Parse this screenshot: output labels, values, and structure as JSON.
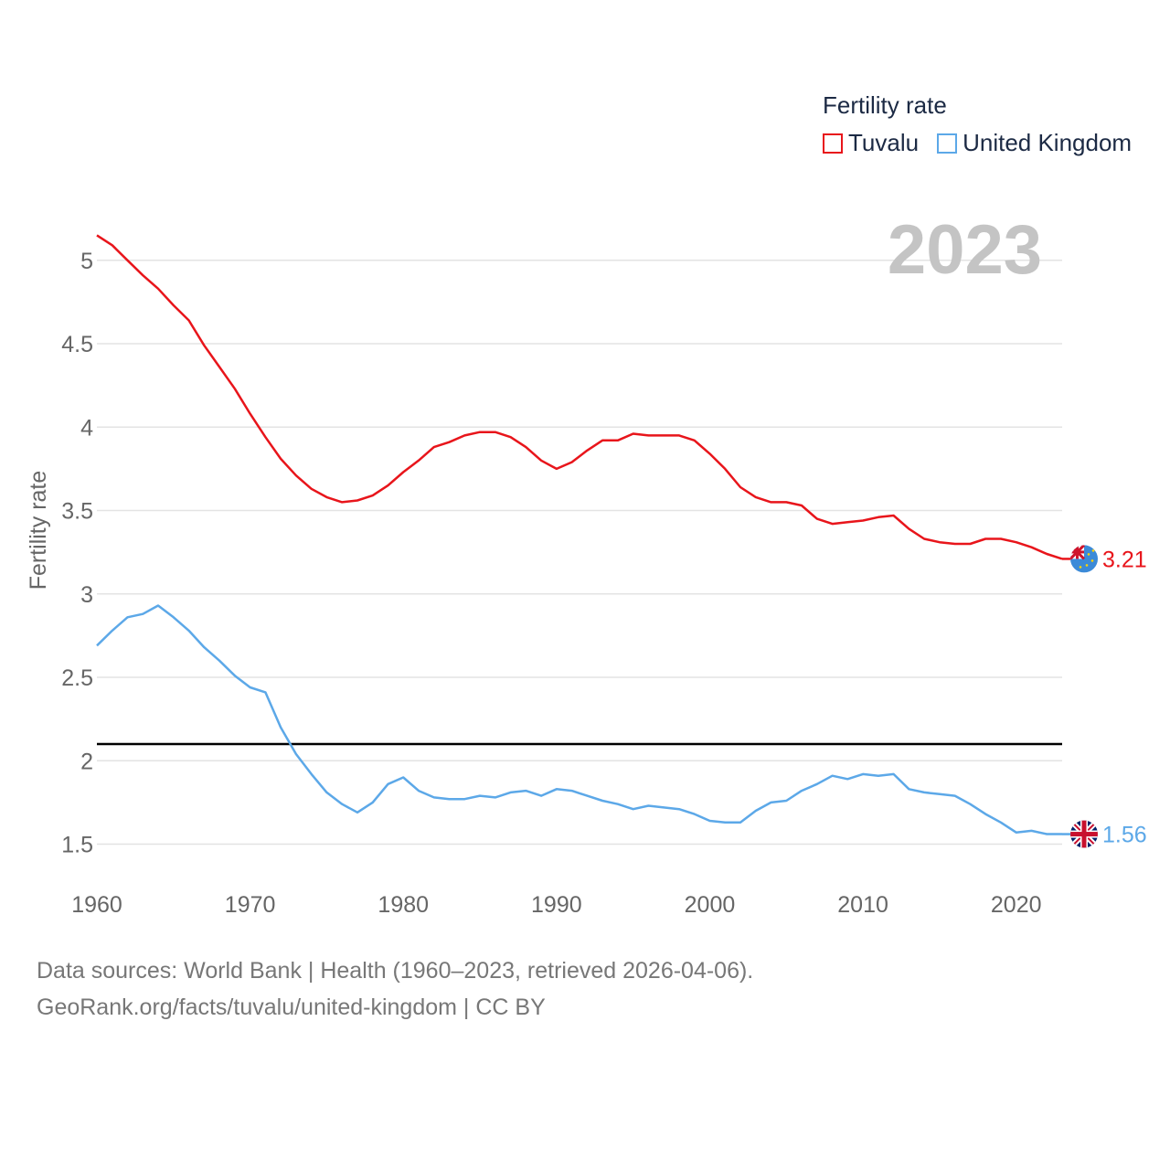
{
  "chart_data": {
    "type": "line",
    "title": "Fertility rate",
    "ylabel": "Fertility rate",
    "xlabel": "",
    "year_label": "2023",
    "xlim": [
      1960,
      2023
    ],
    "ylim": [
      1.3,
      5.3
    ],
    "x_ticks": [
      1960,
      1970,
      1980,
      1990,
      2000,
      2010,
      2020
    ],
    "y_ticks": [
      1.5,
      2,
      2.5,
      3,
      3.5,
      4,
      4.5,
      5
    ],
    "y_tick_labels": [
      "1.5",
      "2",
      "2.5",
      "3",
      "3.5",
      "4",
      "4.5",
      "5"
    ],
    "reference_line": {
      "y": 2.1,
      "color": "#000000"
    },
    "x": [
      1960,
      1961,
      1962,
      1963,
      1964,
      1965,
      1966,
      1967,
      1968,
      1969,
      1970,
      1971,
      1972,
      1973,
      1974,
      1975,
      1976,
      1977,
      1978,
      1979,
      1980,
      1981,
      1982,
      1983,
      1984,
      1985,
      1986,
      1987,
      1988,
      1989,
      1990,
      1991,
      1992,
      1993,
      1994,
      1995,
      1996,
      1997,
      1998,
      1999,
      2000,
      2001,
      2002,
      2003,
      2004,
      2005,
      2006,
      2007,
      2008,
      2009,
      2010,
      2011,
      2012,
      2013,
      2014,
      2015,
      2016,
      2017,
      2018,
      2019,
      2020,
      2021,
      2022,
      2023
    ],
    "series": [
      {
        "name": "Tuvalu",
        "color": "#e8151b",
        "end_label": "3.21",
        "values": [
          5.15,
          5.09,
          5.0,
          4.91,
          4.83,
          4.73,
          4.64,
          4.49,
          4.36,
          4.23,
          4.08,
          3.94,
          3.81,
          3.71,
          3.63,
          3.58,
          3.55,
          3.56,
          3.59,
          3.65,
          3.73,
          3.8,
          3.88,
          3.91,
          3.95,
          3.97,
          3.97,
          3.94,
          3.88,
          3.8,
          3.75,
          3.79,
          3.86,
          3.92,
          3.92,
          3.96,
          3.95,
          3.95,
          3.95,
          3.92,
          3.84,
          3.75,
          3.64,
          3.58,
          3.55,
          3.55,
          3.53,
          3.45,
          3.42,
          3.43,
          3.44,
          3.46,
          3.47,
          3.39,
          3.33,
          3.31,
          3.3,
          3.3,
          3.33,
          3.33,
          3.31,
          3.28,
          3.24,
          3.21
        ]
      },
      {
        "name": "United Kingdom",
        "color": "#5ca8e8",
        "end_label": "1.56",
        "values": [
          2.69,
          2.78,
          2.86,
          2.88,
          2.93,
          2.86,
          2.78,
          2.68,
          2.6,
          2.51,
          2.44,
          2.41,
          2.2,
          2.04,
          1.92,
          1.81,
          1.74,
          1.69,
          1.75,
          1.86,
          1.9,
          1.82,
          1.78,
          1.77,
          1.77,
          1.79,
          1.78,
          1.81,
          1.82,
          1.79,
          1.83,
          1.82,
          1.79,
          1.76,
          1.74,
          1.71,
          1.73,
          1.72,
          1.71,
          1.68,
          1.64,
          1.63,
          1.63,
          1.7,
          1.75,
          1.76,
          1.82,
          1.86,
          1.91,
          1.89,
          1.92,
          1.91,
          1.92,
          1.83,
          1.81,
          1.8,
          1.79,
          1.74,
          1.68,
          1.63,
          1.57,
          1.58,
          1.56,
          1.56
        ]
      }
    ]
  },
  "legend": {
    "title": "Fertility rate",
    "items": [
      {
        "label": "Tuvalu",
        "color": "#e8151b"
      },
      {
        "label": "United Kingdom",
        "color": "#5ca8e8"
      }
    ]
  },
  "footer": {
    "sources": "Data sources: World Bank | Health (1960–2023, retrieved 2026-04-06).",
    "attribution": "GeoRank.org/facts/tuvalu/united-kingdom | CC BY"
  },
  "flags": {
    "tuvalu": "tuvalu-flag-icon",
    "united_kingdom": "uk-flag-icon"
  }
}
